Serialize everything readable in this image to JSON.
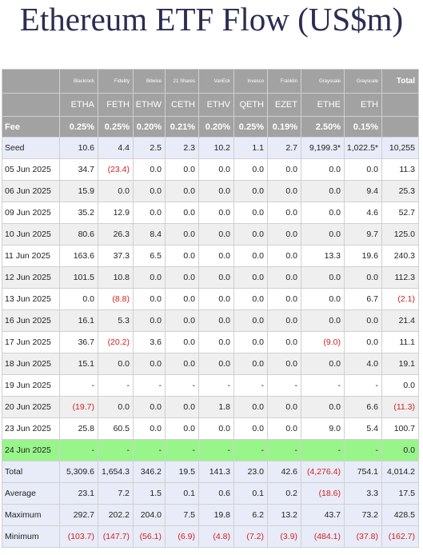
{
  "title": "Ethereum ETF Flow (US$m)",
  "chart_data": {
    "type": "table",
    "title": "Ethereum ETF Flow (US$m)",
    "header": {
      "providers": [
        "Blackrock",
        "Fidelity",
        "Bitwise",
        "21 Shares",
        "VanEck",
        "Invesco",
        "Franklin",
        "Grayscale",
        "Grayscale"
      ],
      "tickers": [
        "ETHA",
        "FETH",
        "ETHW",
        "CETH",
        "ETHV",
        "QETH",
        "EZET",
        "ETHE",
        "ETH"
      ],
      "total_label": "Total",
      "fee_label": "Fee",
      "fees": [
        "0.25%",
        "0.25%",
        "0.20%",
        "0.21%",
        "0.20%",
        "0.25%",
        "0.19%",
        "2.50%",
        "0.15%"
      ]
    },
    "rows": [
      {
        "label": "Seed",
        "values": [
          "10.6",
          "4.4",
          "2.5",
          "2.3",
          "10.2",
          "1.1",
          "2.7",
          "9,199.3*",
          "1,022.5*"
        ],
        "total": "10,255"
      },
      {
        "label": "05 Jun 2025",
        "values": [
          "34.7",
          "(23.4)",
          "0.0",
          "0.0",
          "0.0",
          "0.0",
          "0.0",
          "0.0",
          "0.0"
        ],
        "total": "11.3"
      },
      {
        "label": "06 Jun 2025",
        "values": [
          "15.9",
          "0.0",
          "0.0",
          "0.0",
          "0.0",
          "0.0",
          "0.0",
          "0.0",
          "9.4"
        ],
        "total": "25.3"
      },
      {
        "label": "09 Jun 2025",
        "values": [
          "35.2",
          "12.9",
          "0.0",
          "0.0",
          "0.0",
          "0.0",
          "0.0",
          "0.0",
          "4.6"
        ],
        "total": "52.7"
      },
      {
        "label": "10 Jun 2025",
        "values": [
          "80.6",
          "26.3",
          "8.4",
          "0.0",
          "0.0",
          "0.0",
          "0.0",
          "0.0",
          "9.7"
        ],
        "total": "125.0"
      },
      {
        "label": "11 Jun 2025",
        "values": [
          "163.6",
          "37.3",
          "6.5",
          "0.0",
          "0.0",
          "0.0",
          "0.0",
          "13.3",
          "19.6"
        ],
        "total": "240.3"
      },
      {
        "label": "12 Jun 2025",
        "values": [
          "101.5",
          "10.8",
          "0.0",
          "0.0",
          "0.0",
          "0.0",
          "0.0",
          "0.0",
          "0.0"
        ],
        "total": "112.3"
      },
      {
        "label": "13 Jun 2025",
        "values": [
          "0.0",
          "(8.8)",
          "0.0",
          "0.0",
          "0.0",
          "0.0",
          "0.0",
          "0.0",
          "6.7"
        ],
        "total": "(2.1)"
      },
      {
        "label": "16 Jun 2025",
        "values": [
          "16.1",
          "5.3",
          "0.0",
          "0.0",
          "0.0",
          "0.0",
          "0.0",
          "0.0",
          "0.0"
        ],
        "total": "21.4"
      },
      {
        "label": "17 Jun 2025",
        "values": [
          "36.7",
          "(20.2)",
          "3.6",
          "0.0",
          "0.0",
          "0.0",
          "0.0",
          "(9.0)",
          "0.0"
        ],
        "total": "11.1"
      },
      {
        "label": "18 Jun 2025",
        "values": [
          "15.1",
          "0.0",
          "0.0",
          "0.0",
          "0.0",
          "0.0",
          "0.0",
          "0.0",
          "4.0"
        ],
        "total": "19.1"
      },
      {
        "label": "19 Jun 2025",
        "values": [
          "-",
          "-",
          "-",
          "-",
          "-",
          "-",
          "-",
          "-",
          "-"
        ],
        "total": "0.0"
      },
      {
        "label": "20 Jun 2025",
        "values": [
          "(19.7)",
          "0.0",
          "0.0",
          "0.0",
          "1.8",
          "0.0",
          "0.0",
          "0.0",
          "6.6"
        ],
        "total": "(11.3)"
      },
      {
        "label": "23 Jun 2025",
        "values": [
          "25.8",
          "60.5",
          "0.0",
          "0.0",
          "0.0",
          "0.0",
          "0.0",
          "9.0",
          "5.4"
        ],
        "total": "100.7"
      },
      {
        "label": "24 Jun 2025",
        "values": [
          "-",
          "-",
          "-",
          "-",
          "-",
          "-",
          "-",
          "-",
          "-"
        ],
        "total": "0.0",
        "highlight": "#98f58a"
      }
    ],
    "summary": [
      {
        "label": "Total",
        "values": [
          "5,309.6",
          "1,654.3",
          "346.2",
          "19.5",
          "141.3",
          "23.0",
          "42.6",
          "(4,276.4)",
          "754.1"
        ],
        "total": "4,014.2"
      },
      {
        "label": "Average",
        "values": [
          "23.1",
          "7.2",
          "1.5",
          "0.1",
          "0.6",
          "0.1",
          "0.2",
          "(18.6)",
          "3.3"
        ],
        "total": "17.5"
      },
      {
        "label": "Maximum",
        "values": [
          "292.7",
          "202.2",
          "204.0",
          "7.5",
          "19.8",
          "6.2",
          "13.2",
          "43.7",
          "73.2"
        ],
        "total": "428.5"
      },
      {
        "label": "Minimum",
        "values": [
          "(103.7)",
          "(147.7)",
          "(56.1)",
          "(6.9)",
          "(4.8)",
          "(7.2)",
          "(3.9)",
          "(484.1)",
          "(37.8)"
        ],
        "total": "(162.7)"
      }
    ],
    "colors": {
      "header_bg": "#a2a2a2",
      "header_text": "#ffffff",
      "negative": "#d42020",
      "seed_summary_bg": "#e8ecf8",
      "stripe_bg": "#efefef",
      "highlight_bg": "#98f58a",
      "title": "#2b2d52"
    }
  }
}
